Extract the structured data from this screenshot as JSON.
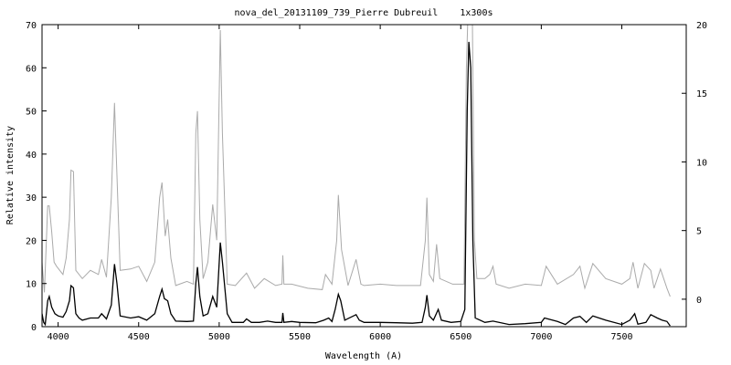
{
  "chart_data": {
    "type": "line",
    "title": "nova_del_20131109_739_Pierre Dubreuil    1x300s",
    "xlabel": "Wavelength (A)",
    "ylabel": "Relative intensity",
    "xlim": [
      3900,
      7900
    ],
    "ylim": [
      0,
      70
    ],
    "y2lim": [
      -2,
      20
    ],
    "xticks": [
      4000,
      4500,
      5000,
      5500,
      6000,
      6500,
      7000,
      7500
    ],
    "yticks": [
      0,
      10,
      20,
      30,
      40,
      50,
      60,
      70
    ],
    "y2ticks": [
      0,
      5,
      10,
      15,
      20
    ],
    "grid": false,
    "series": [
      {
        "axis": "left",
        "color": "#000000",
        "points": [
          [
            3900,
            3
          ],
          [
            3910,
            1
          ],
          [
            3920,
            0.5
          ],
          [
            3935,
            6
          ],
          [
            3945,
            7
          ],
          [
            3960,
            4.5
          ],
          [
            3980,
            3
          ],
          [
            4000,
            2.5
          ],
          [
            4030,
            2.2
          ],
          [
            4050,
            3.5
          ],
          [
            4070,
            6
          ],
          [
            4080,
            9.5
          ],
          [
            4095,
            9
          ],
          [
            4110,
            3
          ],
          [
            4130,
            2
          ],
          [
            4150,
            1.5
          ],
          [
            4200,
            2
          ],
          [
            4250,
            2
          ],
          [
            4270,
            3
          ],
          [
            4300,
            1.8
          ],
          [
            4330,
            5
          ],
          [
            4350,
            14.5
          ],
          [
            4365,
            10
          ],
          [
            4385,
            2.5
          ],
          [
            4450,
            2
          ],
          [
            4500,
            2.3
          ],
          [
            4550,
            1.5
          ],
          [
            4600,
            3
          ],
          [
            4630,
            7
          ],
          [
            4645,
            8.7
          ],
          [
            4660,
            6.5
          ],
          [
            4680,
            6
          ],
          [
            4700,
            3
          ],
          [
            4730,
            1.3
          ],
          [
            4800,
            1.2
          ],
          [
            4840,
            1.3
          ],
          [
            4855,
            10
          ],
          [
            4865,
            13.8
          ],
          [
            4880,
            7
          ],
          [
            4900,
            2.5
          ],
          [
            4930,
            3
          ],
          [
            4960,
            7
          ],
          [
            4985,
            4.5
          ],
          [
            5007,
            19.5
          ],
          [
            5020,
            15
          ],
          [
            5050,
            3
          ],
          [
            5080,
            1
          ],
          [
            5150,
            1
          ],
          [
            5170,
            1.8
          ],
          [
            5200,
            1
          ],
          [
            5250,
            1
          ],
          [
            5300,
            1.3
          ],
          [
            5350,
            1
          ],
          [
            5390,
            1
          ],
          [
            5395,
            3.2
          ],
          [
            5402,
            1
          ],
          [
            5450,
            1.2
          ],
          [
            5500,
            1
          ],
          [
            5600,
            0.9
          ],
          [
            5650,
            1.5
          ],
          [
            5680,
            2
          ],
          [
            5700,
            1.2
          ],
          [
            5720,
            4
          ],
          [
            5740,
            7.5
          ],
          [
            5755,
            6
          ],
          [
            5780,
            1.5
          ],
          [
            5850,
            2.8
          ],
          [
            5870,
            1.5
          ],
          [
            5900,
            1
          ],
          [
            6000,
            1
          ],
          [
            6100,
            0.9
          ],
          [
            6200,
            0.8
          ],
          [
            6260,
            1
          ],
          [
            6280,
            4.5
          ],
          [
            6290,
            7.3
          ],
          [
            6305,
            2.5
          ],
          [
            6330,
            1.5
          ],
          [
            6360,
            4
          ],
          [
            6380,
            1.5
          ],
          [
            6440,
            1
          ],
          [
            6500,
            1.2
          ],
          [
            6525,
            4
          ],
          [
            6540,
            50
          ],
          [
            6550,
            66
          ],
          [
            6562,
            60
          ],
          [
            6575,
            20
          ],
          [
            6590,
            2
          ],
          [
            6650,
            1
          ],
          [
            6700,
            1.3
          ],
          [
            6800,
            0.5
          ],
          [
            6900,
            0.7
          ],
          [
            7000,
            1
          ],
          [
            7020,
            2
          ],
          [
            7100,
            1.2
          ],
          [
            7150,
            0.5
          ],
          [
            7200,
            2
          ],
          [
            7240,
            2.4
          ],
          [
            7280,
            1
          ],
          [
            7320,
            2.5
          ],
          [
            7400,
            1.5
          ],
          [
            7500,
            0.5
          ],
          [
            7550,
            1.5
          ],
          [
            7580,
            3
          ],
          [
            7600,
            0.6
          ],
          [
            7650,
            1
          ],
          [
            7680,
            2.8
          ],
          [
            7720,
            2
          ],
          [
            7750,
            1.5
          ],
          [
            7780,
            1.2
          ],
          [
            7800,
            0.2
          ]
        ]
      },
      {
        "axis": "right",
        "color": "#aaaaaa",
        "points": [
          [
            3900,
            2.7
          ],
          [
            3915,
            0.5
          ],
          [
            3935,
            6.8
          ],
          [
            3945,
            6.8
          ],
          [
            3960,
            4.9
          ],
          [
            3975,
            2.7
          ],
          [
            3990,
            2.4
          ],
          [
            4030,
            1.8
          ],
          [
            4050,
            3
          ],
          [
            4070,
            5.8
          ],
          [
            4080,
            9.4
          ],
          [
            4095,
            9.3
          ],
          [
            4110,
            2.1
          ],
          [
            4150,
            1.5
          ],
          [
            4200,
            2.1
          ],
          [
            4250,
            1.8
          ],
          [
            4270,
            2.9
          ],
          [
            4300,
            1.6
          ],
          [
            4330,
            7.4
          ],
          [
            4350,
            14.3
          ],
          [
            4365,
            9
          ],
          [
            4385,
            2.1
          ],
          [
            4450,
            2.2
          ],
          [
            4500,
            2.4
          ],
          [
            4550,
            1.3
          ],
          [
            4600,
            2.7
          ],
          [
            4630,
            7.4
          ],
          [
            4645,
            8.5
          ],
          [
            4665,
            4.6
          ],
          [
            4680,
            5.8
          ],
          [
            4700,
            3
          ],
          [
            4730,
            1
          ],
          [
            4800,
            1.3
          ],
          [
            4840,
            1.1
          ],
          [
            4855,
            12.1
          ],
          [
            4865,
            13.7
          ],
          [
            4880,
            5.8
          ],
          [
            4900,
            1.5
          ],
          [
            4930,
            2.7
          ],
          [
            4960,
            6.9
          ],
          [
            4985,
            4.3
          ],
          [
            5007,
            19.6
          ],
          [
            5020,
            12.1
          ],
          [
            5050,
            1.1
          ],
          [
            5100,
            1
          ],
          [
            5170,
            1.9
          ],
          [
            5220,
            0.8
          ],
          [
            5280,
            1.5
          ],
          [
            5350,
            1
          ],
          [
            5390,
            1.1
          ],
          [
            5395,
            3.2
          ],
          [
            5402,
            1.1
          ],
          [
            5450,
            1.1
          ],
          [
            5550,
            0.8
          ],
          [
            5640,
            0.7
          ],
          [
            5660,
            1.8
          ],
          [
            5700,
            1.1
          ],
          [
            5730,
            4.3
          ],
          [
            5740,
            7.6
          ],
          [
            5760,
            3.6
          ],
          [
            5800,
            1
          ],
          [
            5850,
            2.9
          ],
          [
            5880,
            1.1
          ],
          [
            5900,
            1
          ],
          [
            6000,
            1.1
          ],
          [
            6100,
            1
          ],
          [
            6250,
            1
          ],
          [
            6280,
            4.3
          ],
          [
            6290,
            7.4
          ],
          [
            6305,
            1.8
          ],
          [
            6330,
            1.3
          ],
          [
            6350,
            4
          ],
          [
            6370,
            1.5
          ],
          [
            6450,
            1.1
          ],
          [
            6520,
            1.1
          ],
          [
            6535,
            16.8
          ],
          [
            6550,
            23
          ],
          [
            6570,
            23
          ],
          [
            6585,
            4.3
          ],
          [
            6600,
            1.5
          ],
          [
            6650,
            1.5
          ],
          [
            6680,
            1.8
          ],
          [
            6700,
            2.4
          ],
          [
            6720,
            1.1
          ],
          [
            6800,
            0.8
          ],
          [
            6900,
            1.1
          ],
          [
            7000,
            1
          ],
          [
            7030,
            2.4
          ],
          [
            7100,
            1.1
          ],
          [
            7200,
            1.8
          ],
          [
            7240,
            2.4
          ],
          [
            7270,
            0.8
          ],
          [
            7320,
            2.6
          ],
          [
            7400,
            1.5
          ],
          [
            7500,
            1.1
          ],
          [
            7550,
            1.5
          ],
          [
            7570,
            2.7
          ],
          [
            7600,
            0.8
          ],
          [
            7640,
            2.6
          ],
          [
            7680,
            2.1
          ],
          [
            7700,
            0.8
          ],
          [
            7740,
            2.2
          ],
          [
            7780,
            0.8
          ],
          [
            7800,
            0.2
          ]
        ]
      }
    ]
  }
}
